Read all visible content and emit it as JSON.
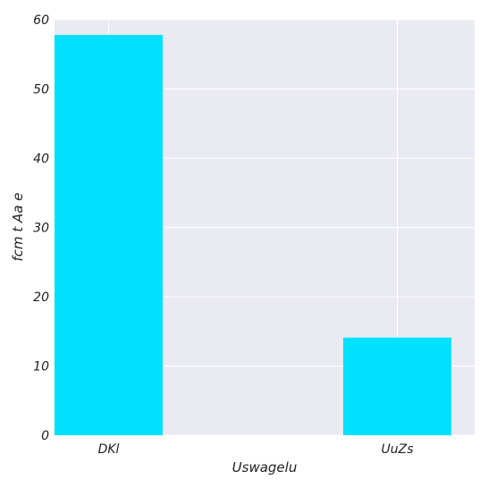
{
  "chart_data": {
    "type": "bar",
    "categories": [
      "DKl",
      "UuZs"
    ],
    "values": [
      57.8,
      14.1
    ],
    "title": "",
    "xlabel": "Uswagelu",
    "ylabel": "fcm t  Aa e",
    "ylim": [
      0,
      60
    ],
    "yticks": [
      0,
      10,
      20,
      30,
      40,
      50,
      60
    ],
    "grid": true,
    "bar_color": "#00e0ff",
    "background_color": "#eaeaf2",
    "grid_color": "#ffffff"
  }
}
